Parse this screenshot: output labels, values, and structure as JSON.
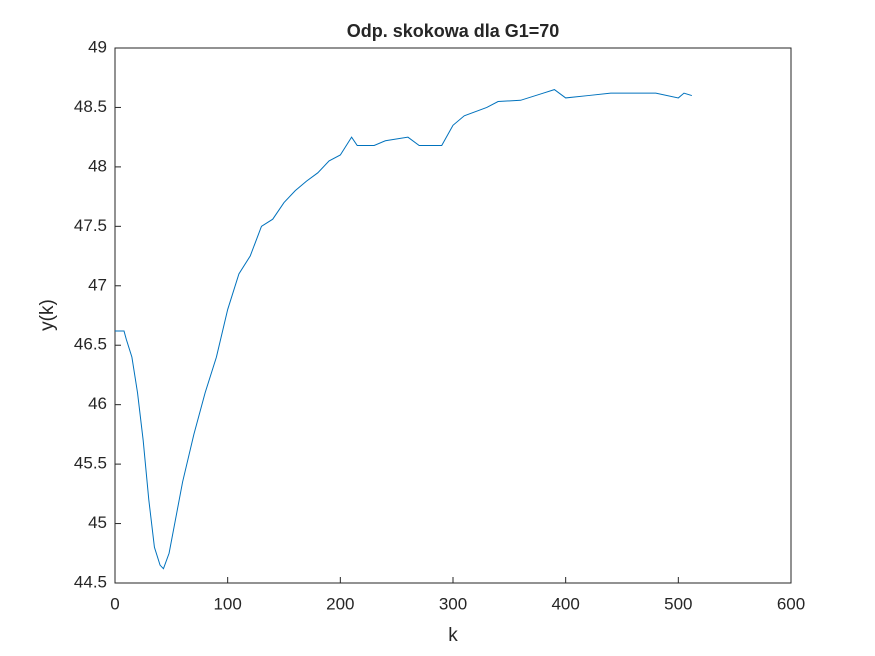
{
  "chart_data": {
    "type": "line",
    "title": "Odp. skokowa dla G1=70",
    "xlabel": "k",
    "ylabel": "y(k)",
    "x": [
      0,
      8,
      10,
      15,
      20,
      25,
      30,
      35,
      40,
      43,
      48,
      55,
      60,
      70,
      80,
      90,
      100,
      110,
      120,
      130,
      140,
      150,
      160,
      170,
      180,
      190,
      200,
      210,
      215,
      230,
      240,
      260,
      270,
      290,
      300,
      310,
      330,
      340,
      360,
      380,
      390,
      400,
      420,
      440,
      460,
      480,
      500,
      505,
      512
    ],
    "series": [
      {
        "name": "y",
        "color": "#0072bd",
        "values": [
          46.62,
          46.62,
          46.55,
          46.4,
          46.1,
          45.7,
          45.2,
          44.8,
          44.65,
          44.62,
          44.75,
          45.1,
          45.35,
          45.75,
          46.1,
          46.4,
          46.8,
          47.1,
          47.25,
          47.5,
          47.56,
          47.7,
          47.8,
          47.88,
          47.95,
          48.05,
          48.1,
          48.25,
          48.18,
          48.18,
          48.22,
          48.25,
          48.18,
          48.18,
          48.35,
          48.43,
          48.5,
          48.55,
          48.56,
          48.62,
          48.65,
          48.58,
          48.6,
          48.62,
          48.62,
          48.62,
          48.58,
          48.62,
          48.6
        ]
      }
    ],
    "xlim": [
      0,
      600
    ],
    "xticks": [
      0,
      100,
      200,
      300,
      400,
      500,
      600
    ],
    "ylim": [
      44.5,
      49
    ],
    "yticks": [
      44.5,
      45,
      45.5,
      46,
      46.5,
      47,
      47.5,
      48,
      48.5,
      49
    ]
  }
}
